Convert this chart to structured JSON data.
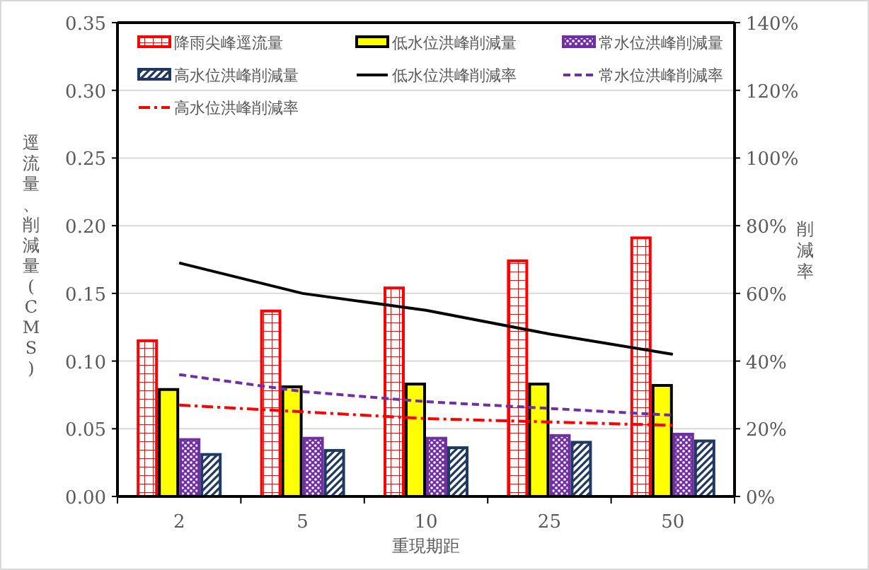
{
  "chart_data": {
    "type": "bar",
    "xlabel": "重現期距",
    "ylabel": "逕流量、削減量(CMS)",
    "y2label": "削減率",
    "categories": [
      "2",
      "5",
      "10",
      "25",
      "50"
    ],
    "ylim": [
      0,
      0.35
    ],
    "yticks": [
      {
        "value": 0,
        "label": "0.00"
      },
      {
        "value": 0.05,
        "label": "0.05"
      },
      {
        "value": 0.1,
        "label": "0.10"
      },
      {
        "value": 0.15,
        "label": "0.15"
      },
      {
        "value": 0.2,
        "label": "0.20"
      },
      {
        "value": 0.25,
        "label": "0.25"
      },
      {
        "value": 0.3,
        "label": "0.30"
      },
      {
        "value": 0.35,
        "label": "0.35"
      }
    ],
    "y2lim": [
      0,
      140
    ],
    "y2ticks": [
      {
        "value": 0,
        "label": "0%"
      },
      {
        "value": 20,
        "label": "20%"
      },
      {
        "value": 40,
        "label": "40%"
      },
      {
        "value": 60,
        "label": "60%"
      },
      {
        "value": 80,
        "label": "80%"
      },
      {
        "value": 100,
        "label": "100%"
      },
      {
        "value": 120,
        "label": "120%"
      },
      {
        "value": 140,
        "label": "140%"
      }
    ],
    "grid": "y",
    "legend": "top",
    "series": [
      {
        "name": "降雨尖峰逕流量",
        "color": "#ff0000",
        "values": [
          0.115,
          0.137,
          0.154,
          0.174,
          0.191
        ]
      },
      {
        "name": "低水位洪峰削減量",
        "color": "#ffff00",
        "values": [
          0.079,
          0.081,
          0.083,
          0.083,
          0.082
        ]
      },
      {
        "name": "常水位洪峰削減量",
        "color": "#7030a0",
        "values": [
          0.042,
          0.043,
          0.043,
          0.045,
          0.046
        ]
      },
      {
        "name": "高水位洪峰削減量",
        "color": "#1f3864",
        "values": [
          0.031,
          0.034,
          0.036,
          0.04,
          0.041
        ]
      },
      {
        "name": "低水位洪峰削減率",
        "type": "line",
        "axis": "y2",
        "color": "#000000",
        "line_style": "solid",
        "values": [
          69,
          60,
          55,
          48,
          42
        ]
      },
      {
        "name": "常水位洪峰削減率",
        "type": "line",
        "axis": "y2",
        "color": "#7030a0",
        "line_style": "dashed",
        "values": [
          36,
          31,
          28,
          26,
          24
        ]
      },
      {
        "name": "高水位洪峰削減率",
        "type": "line",
        "axis": "y2",
        "color": "#ff0000",
        "line_style": "dashdot",
        "values": [
          27,
          25,
          23,
          22,
          21
        ]
      }
    ]
  }
}
